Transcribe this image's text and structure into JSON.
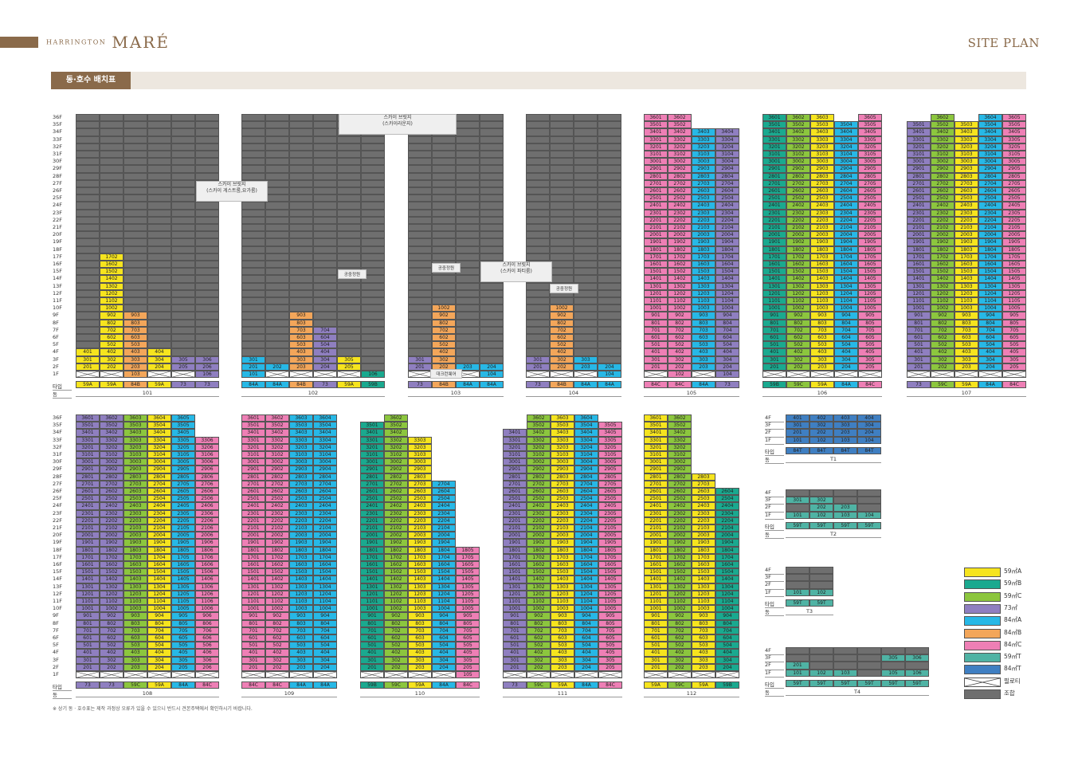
{
  "header": {
    "brand_small": "HARRINGTON",
    "brand_big": "MARÉ",
    "section": "SITE PLAN"
  },
  "section_tab": "동·호수 배치표",
  "footnote": "※ 상기 동 · 호수표는 제작 과정상 오류가 있을 수 있으니 반드시 견본주택에서 확인하시기 바랍니다.",
  "labels": {
    "type": "타입",
    "dong": "동"
  },
  "notes": {
    "sky_bridge_lounge": "스카이 브릿지\n(스카이라운지)",
    "sky_bridge_guest": "스카이 브릿지\n(스카이 게스트룸,요가룸)",
    "sky_bridge_party": "스카이 브릿지\n(스카이 파티룸)",
    "garden1": "공중정원",
    "garden2": "공중정원",
    "garden3": "공중정원",
    "daycare": "대크런웨어"
  },
  "colors": {
    "59A": "#f6e41e",
    "59B": "#1aa98f",
    "59C": "#8cc63e",
    "73": "#8f7fc0",
    "84A": "#27b8e6",
    "84B": "#f3a65a",
    "84C": "#ee7fb5",
    "59T": "#4fb3a4",
    "84T": "#3f7fc2",
    "common": "#6f6f6f"
  },
  "legend": [
    {
      "key": "59A",
      "label": "59㎡A"
    },
    {
      "key": "59B",
      "label": "59㎡B"
    },
    {
      "key": "59C",
      "label": "59㎡C"
    },
    {
      "key": "73",
      "label": "73㎡"
    },
    {
      "key": "84A",
      "label": "84㎡A"
    },
    {
      "key": "84B",
      "label": "84㎡B"
    },
    {
      "key": "84C",
      "label": "84㎡C"
    },
    {
      "key": "59T",
      "label": "59㎡T"
    },
    {
      "key": "84T",
      "label": "84㎡T"
    },
    {
      "key": "pil",
      "label": "필로티"
    },
    {
      "key": "common",
      "label": "조합"
    }
  ],
  "top_floors": [
    "36F",
    "35F",
    "34F",
    "33F",
    "32F",
    "31F",
    "30F",
    "29F",
    "28F",
    "27F",
    "26F",
    "25F",
    "24F",
    "23F",
    "22F",
    "21F",
    "20F",
    "19F",
    "18F",
    "17F",
    "16F",
    "15F",
    "14F",
    "13F",
    "12F",
    "11F",
    "10F",
    "9F",
    "8F",
    "7F",
    "6F",
    "5F",
    "4F",
    "3F",
    "2F",
    "1F"
  ],
  "buildings": [
    {
      "name": "101",
      "types": [
        "59A",
        "59A",
        "84B",
        "59A",
        "73",
        "73"
      ],
      "spec": [
        {
          "t": "59A",
          "hi": 4,
          "lo": 2,
          "common_above": true
        },
        {
          "t": "59A",
          "hi": 17,
          "lo": 2,
          "common_above": true
        },
        {
          "t": "84B",
          "hi": 9,
          "lo": 1,
          "common_above": true
        },
        {
          "t": "59A",
          "hi": 4,
          "lo": 2,
          "common_above": true
        },
        {
          "t": "73",
          "hi": 3,
          "lo": 2,
          "common_above": true
        },
        {
          "t": "73",
          "hi": 3,
          "lo": 1,
          "common_above": true
        }
      ]
    },
    {
      "name": "102",
      "types": [
        "84A",
        "84A",
        "84B",
        "73",
        "59A",
        "59B"
      ],
      "spec": [
        {
          "t": "84A",
          "hi": 3,
          "lo": 1,
          "common_above": true
        },
        {
          "t": "84A",
          "hi": 2,
          "lo": 2,
          "common_above": true
        },
        {
          "t": "84B",
          "hi": 9,
          "lo": 2,
          "common_above": true
        },
        {
          "t": "73",
          "hi": 7,
          "lo": 2,
          "common_above": true
        },
        {
          "t": "59A",
          "hi": 3,
          "lo": 2,
          "common_above": true
        },
        {
          "t": "59B",
          "hi": 1,
          "lo": 1,
          "common_above": true
        }
      ]
    },
    {
      "name": "103",
      "types": [
        "73",
        "84B",
        "84A",
        "84A"
      ],
      "spec": [
        {
          "t": "73",
          "hi": 3,
          "lo": 2,
          "common_above": true
        },
        {
          "t": "84B",
          "hi": 10,
          "lo": 2,
          "common_above": true
        },
        {
          "t": "84A",
          "hi": 2,
          "lo": 2,
          "common_above": true
        },
        {
          "t": "84A",
          "hi": 2,
          "lo": 1,
          "common_above": true
        }
      ]
    },
    {
      "name": "104",
      "types": [
        "73",
        "84B",
        "84A",
        "84A"
      ],
      "spec": [
        {
          "t": "73",
          "hi": 3,
          "lo": 2,
          "common_above": true
        },
        {
          "t": "84B",
          "hi": 10,
          "lo": 2,
          "common_above": true
        },
        {
          "t": "84A",
          "hi": 3,
          "lo": 2,
          "common_above": true
        },
        {
          "t": "84A",
          "hi": 2,
          "lo": 1,
          "common_above": true
        }
      ]
    },
    {
      "name": "105",
      "types": [
        "84C",
        "84C",
        "84A",
        "73"
      ],
      "spec": [
        {
          "t": "84C",
          "hi": 36,
          "lo": 2
        },
        {
          "t": "84C",
          "hi": 36,
          "lo": 1
        },
        {
          "t": "84A",
          "hi": 34,
          "lo": 2
        },
        {
          "t": "73",
          "hi": 34,
          "lo": 1
        }
      ]
    },
    {
      "name": "106",
      "types": [
        "59B",
        "59C",
        "59A",
        "84A",
        "84C"
      ],
      "spec": [
        {
          "t": "59B",
          "hi": 36,
          "lo": 2
        },
        {
          "t": "59C",
          "hi": 36,
          "lo": 2
        },
        {
          "t": "59A",
          "hi": 36,
          "lo": 2
        },
        {
          "t": "84A",
          "hi": 35,
          "lo": 2
        },
        {
          "t": "84C",
          "hi": 36,
          "lo": 2
        }
      ]
    },
    {
      "name": "107",
      "types": [
        "73",
        "59C",
        "59A",
        "84A",
        "84C"
      ],
      "spec": [
        {
          "t": "73",
          "hi": 35,
          "lo": 2
        },
        {
          "t": "59C",
          "hi": 36,
          "lo": 2
        },
        {
          "t": "59A",
          "hi": 35,
          "lo": 2
        },
        {
          "t": "84A",
          "hi": 36,
          "lo": 2
        },
        {
          "t": "84C",
          "hi": 36,
          "lo": 2
        }
      ]
    },
    {
      "name": "108",
      "types": [
        "73",
        "73",
        "59C",
        "59A",
        "84A",
        "84C"
      ],
      "spec": [
        {
          "t": "73",
          "hi": 36,
          "lo": 2
        },
        {
          "t": "73",
          "hi": 36,
          "lo": 2
        },
        {
          "t": "59C",
          "hi": 36,
          "lo": 2
        },
        {
          "t": "59A",
          "hi": 36,
          "lo": 2
        },
        {
          "t": "84A",
          "hi": 36,
          "lo": 2
        },
        {
          "t": "84C",
          "hi": 33,
          "lo": 2
        }
      ]
    },
    {
      "name": "109",
      "types": [
        "84C",
        "84C",
        "84A",
        "84A"
      ],
      "spec": [
        {
          "t": "84C",
          "hi": 36,
          "lo": 2
        },
        {
          "t": "84C",
          "hi": 36,
          "lo": 2
        },
        {
          "t": "84A",
          "hi": 36,
          "lo": 2
        },
        {
          "t": "84A",
          "hi": 36,
          "lo": 2
        }
      ]
    },
    {
      "name": "110",
      "types": [
        "59B",
        "59C",
        "59A",
        "84A",
        "84C"
      ],
      "spec": [
        {
          "t": "59B",
          "hi": 35,
          "lo": 2
        },
        {
          "t": "59C",
          "hi": 36,
          "lo": 2
        },
        {
          "t": "59A",
          "hi": 33,
          "lo": 2
        },
        {
          "t": "84A",
          "hi": 27,
          "lo": 2
        },
        {
          "t": "84C",
          "hi": 18,
          "lo": 1
        }
      ]
    },
    {
      "name": "111",
      "types": [
        "73",
        "59C",
        "59A",
        "84A",
        "84C"
      ],
      "spec": [
        {
          "t": "73",
          "hi": 34,
          "lo": 2
        },
        {
          "t": "59C",
          "hi": 36,
          "lo": 2
        },
        {
          "t": "59A",
          "hi": 36,
          "lo": 2
        },
        {
          "t": "84A",
          "hi": 36,
          "lo": 2
        },
        {
          "t": "84C",
          "hi": 35,
          "lo": 2
        }
      ]
    },
    {
      "name": "112",
      "types": [
        "59A",
        "59C",
        "59A",
        "59B"
      ],
      "spec": [
        {
          "t": "59A",
          "hi": 36,
          "lo": 2
        },
        {
          "t": "59C",
          "hi": 36,
          "lo": 2
        },
        {
          "t": "59A",
          "hi": 28,
          "lo": 2
        },
        {
          "t": "59B",
          "hi": 26,
          "lo": 2
        }
      ]
    }
  ],
  "townhouses": [
    {
      "name": "T1",
      "types": [
        "84T",
        "84T",
        "84T",
        "84T"
      ],
      "floors": [
        "4F",
        "3F",
        "2F",
        "1F"
      ],
      "rows": [
        [
          "401",
          "402",
          "403",
          "404"
        ],
        [
          "301",
          "302",
          "303",
          "304"
        ],
        [
          "201",
          "202",
          "203",
          "204"
        ],
        [
          "101",
          "102",
          "103",
          "104"
        ]
      ]
    },
    {
      "name": "T2",
      "types": [
        "59T",
        "59T",
        "59T",
        "59T"
      ],
      "floors": [
        "4F",
        "3F",
        "2F",
        "1F"
      ],
      "rows": [
        [
          "",
          "",
          "",
          ""
        ],
        [
          "301",
          "302",
          "",
          ""
        ],
        [
          "",
          "202",
          "203",
          ""
        ],
        [
          "101",
          "102",
          "103",
          "104"
        ]
      ]
    },
    {
      "name": "T3",
      "types": [
        "59T",
        "59T"
      ],
      "floors": [
        "4F",
        "3F",
        "2F",
        "1F"
      ],
      "rows": [
        [
          "",
          ""
        ],
        [
          "",
          ""
        ],
        [
          "",
          ""
        ],
        [
          "101",
          "102"
        ]
      ]
    },
    {
      "name": "T4",
      "types": [
        "59T",
        "59T",
        "59T",
        "59T",
        "59T",
        "59T"
      ],
      "floors": [
        "4F",
        "3F",
        "2F",
        "1F"
      ],
      "rows": [
        [
          "",
          "",
          "",
          "",
          "",
          ""
        ],
        [
          "",
          "",
          "",
          "",
          "305",
          "306"
        ],
        [
          "201",
          "",
          "",
          "",
          "",
          ""
        ],
        [
          "101",
          "102",
          "103",
          "",
          "105",
          "106"
        ]
      ]
    }
  ]
}
